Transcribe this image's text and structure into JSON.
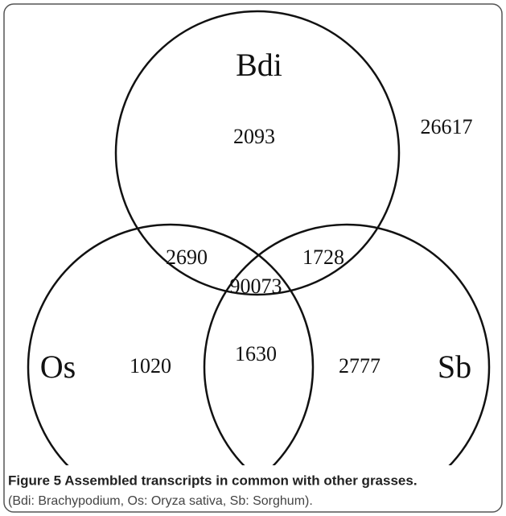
{
  "sets": [
    {
      "label": "Bdi"
    },
    {
      "label": "Os"
    },
    {
      "label": "Sb"
    }
  ],
  "regions": {
    "bdi_only": 2093,
    "outside": 26617,
    "bdi_os": 2690,
    "bdi_sb": 1728,
    "all": 90073,
    "os_only": 1020,
    "os_sb": 1630,
    "sb_only": 2777
  },
  "caption": {
    "title": "Figure 5 Assembled transcripts in common with other grasses.",
    "text": "(Bdi: Brachypodium, Os: Oryza sativa, Sb: Sorghum)."
  }
}
